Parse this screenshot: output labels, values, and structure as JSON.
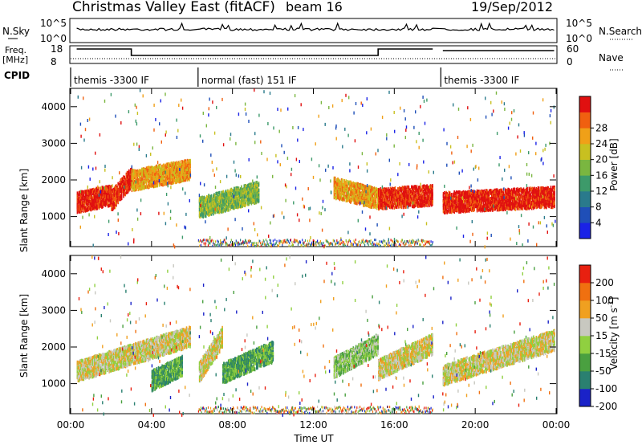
{
  "header": {
    "title": "Christmas Valley East (fitACF)",
    "beam": "beam 16",
    "date": "19/Sep/2012"
  },
  "labels": {
    "nsky": "N.Sky",
    "freq": "Freq.",
    "freq_unit": "[MHz]",
    "cpid": "CPID",
    "nsearch": "N.Search",
    "nave": "Nave",
    "nsky_ticks": [
      "10^5",
      "10^0"
    ],
    "nsearch_ticks": [
      "10^5",
      "10^0"
    ],
    "freq_ticks": [
      "18",
      "8"
    ],
    "nave_ticks": [
      "60",
      "0"
    ],
    "ylabel": "Slant Range [km]",
    "xlabel": "Time UT",
    "power_label": "Power [dB]",
    "velocity_label": "Velocity [m s",
    "velocity_sup": "-1",
    "velocity_close": "]"
  },
  "cpid_segments": [
    {
      "label": "themis -3300 IF",
      "start": 0,
      "end": 6
    },
    {
      "label": "normal (fast) 151 IF",
      "start": 6.3,
      "end": 18
    },
    {
      "label": "themis -3300 IF",
      "start": 18.3,
      "end": 24
    }
  ],
  "power_scale": {
    "ticks": [
      "4",
      "8",
      "12",
      "16",
      "20",
      "24",
      "28"
    ],
    "colors": [
      "#1a22e6",
      "#1f4fb8",
      "#2a7a8c",
      "#3d9a6a",
      "#7ab640",
      "#c8c020",
      "#f0a018",
      "#f06010",
      "#e01010"
    ]
  },
  "velocity_scale": {
    "ticks": [
      "200",
      "100",
      "50",
      "15",
      "-15",
      "-50",
      "-100",
      "-200"
    ],
    "colors": [
      "#1a22c8",
      "#2a8070",
      "#4aa040",
      "#90d040",
      "#c8c8c0",
      "#f0a020",
      "#f07010",
      "#e82010"
    ]
  },
  "chart_data": {
    "type": "heatmap",
    "x_ticks": [
      "00:00",
      "04:00",
      "08:00",
      "12:00",
      "16:00",
      "20:00",
      "00:00"
    ],
    "y_ticks": [
      "1000",
      "2000",
      "3000",
      "4000"
    ],
    "xlim": [
      0,
      24
    ],
    "ylim": [
      180,
      4500
    ],
    "gaps": [
      [
        5.9,
        6.3
      ],
      [
        17.95,
        18.35
      ]
    ],
    "power_bands": [
      {
        "t": [
          0.3,
          2.0
        ],
        "r": [
          1400,
          1600
        ],
        "level": 8
      },
      {
        "t": [
          2.0,
          3.0
        ],
        "r": [
          1450,
          2100
        ],
        "level": 8
      },
      {
        "t": [
          3.0,
          5.9
        ],
        "r": [
          2000,
          2300
        ],
        "level": 6
      },
      {
        "t": [
          6.3,
          9.3
        ],
        "r": [
          1250,
          1700
        ],
        "level": 4
      },
      {
        "t": [
          13.0,
          15.2
        ],
        "r": [
          1800,
          1500
        ],
        "level": 6
      },
      {
        "t": [
          15.2,
          17.9
        ],
        "r": [
          1500,
          1600
        ],
        "level": 8
      },
      {
        "t": [
          18.4,
          23.9
        ],
        "r": [
          1400,
          1550
        ],
        "level": 8
      }
    ],
    "velocity_bands": [
      {
        "t": [
          0.3,
          5.9
        ],
        "r": [
          1350,
          2300
        ],
        "level": 4
      },
      {
        "t": [
          4.0,
          5.5
        ],
        "r": [
          1100,
          1500
        ],
        "level": 2
      },
      {
        "t": [
          6.3,
          7.5
        ],
        "r": [
          1300,
          2300
        ],
        "level": 4
      },
      {
        "t": [
          7.5,
          10.0
        ],
        "r": [
          1300,
          1900
        ],
        "level": 2
      },
      {
        "t": [
          13.0,
          15.2
        ],
        "r": [
          1450,
          2100
        ],
        "level": 3
      },
      {
        "t": [
          15.2,
          17.9
        ],
        "r": [
          1400,
          2100
        ],
        "level": 4
      },
      {
        "t": [
          18.4,
          23.9
        ],
        "r": [
          1250,
          2200
        ],
        "level": 4
      }
    ]
  }
}
